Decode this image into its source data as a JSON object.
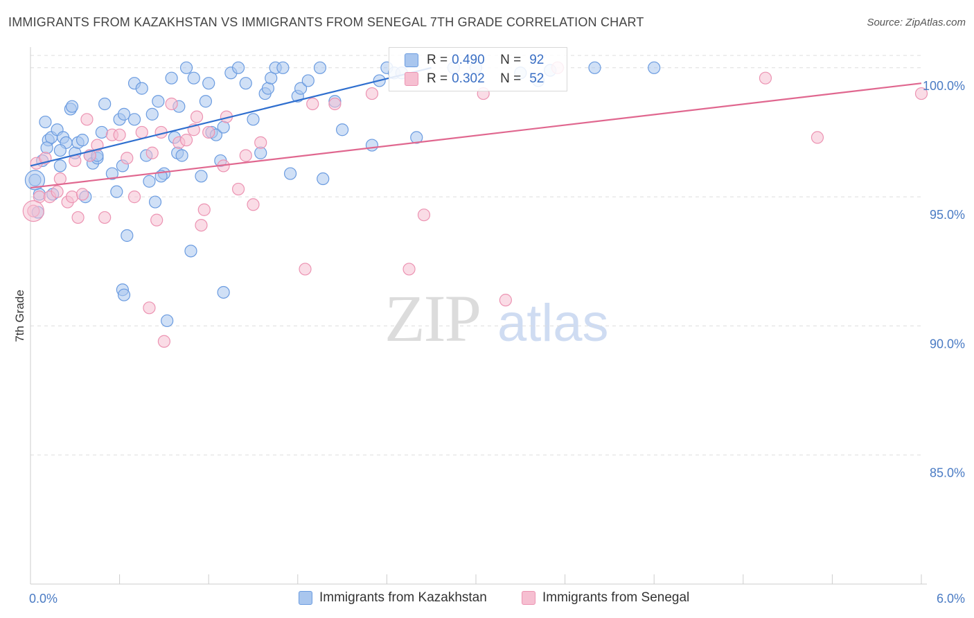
{
  "title": "IMMIGRANTS FROM KAZAKHSTAN VS IMMIGRANTS FROM SENEGAL 7TH GRADE CORRELATION CHART",
  "source": "Source: ZipAtlas.com",
  "watermark": {
    "zip": "ZIP",
    "atlas": "atlas"
  },
  "legend": {
    "rows": [
      {
        "r_label": "R =",
        "r_value": "0.490",
        "n_label": "N =",
        "n_value": "92"
      },
      {
        "r_label": "R =",
        "r_value": "0.302",
        "n_label": "N =",
        "n_value": "52"
      }
    ]
  },
  "bottom_legend": {
    "kazakhstan": "Immigrants from Kazakhstan",
    "senegal": "Immigrants from Senegal"
  },
  "colors": {
    "blue_fill": "#a9c6ee",
    "blue_stroke": "#6a9be0",
    "blue_line": "#2f6fcf",
    "pink_fill": "#f6bfd1",
    "pink_stroke": "#ec93b2",
    "pink_line": "#e0678f",
    "tick": "#4a7bc4",
    "grid": "#dddddd"
  },
  "chart_data": {
    "type": "scatter",
    "xlabel": "",
    "ylabel": "7th Grade",
    "xlim": [
      0.0,
      6.0
    ],
    "ylim": [
      80.0,
      100.8
    ],
    "x_tick_labels": [
      "0.0%",
      "6.0%"
    ],
    "y_ticks": [
      85.0,
      90.0,
      95.0,
      100.0
    ],
    "y_tick_labels": [
      "85.0%",
      "90.0%",
      "95.0%",
      "100.0%"
    ],
    "series": [
      {
        "name": "Immigrants from Kazakhstan",
        "R": 0.49,
        "N": 92,
        "trend": {
          "x0": 0.0,
          "y0": 96.2,
          "x1": 2.7,
          "y1": 100.0
        },
        "points": [
          [
            0.03,
            95.65
          ],
          [
            0.05,
            94.4
          ],
          [
            0.06,
            95.1
          ],
          [
            0.08,
            96.4
          ],
          [
            0.1,
            97.9
          ],
          [
            0.12,
            97.2
          ],
          [
            0.14,
            97.3
          ],
          [
            0.15,
            95.1
          ],
          [
            0.18,
            97.6
          ],
          [
            0.2,
            96.2
          ],
          [
            0.22,
            97.3
          ],
          [
            0.24,
            97.1
          ],
          [
            0.27,
            98.4
          ],
          [
            0.28,
            98.5
          ],
          [
            0.3,
            96.7
          ],
          [
            0.32,
            97.1
          ],
          [
            0.35,
            97.2
          ],
          [
            0.37,
            95.0
          ],
          [
            0.4,
            96.6
          ],
          [
            0.42,
            96.3
          ],
          [
            0.45,
            96.5
          ],
          [
            0.48,
            97.5
          ],
          [
            0.5,
            98.6
          ],
          [
            0.55,
            95.9
          ],
          [
            0.58,
            95.2
          ],
          [
            0.6,
            98.0
          ],
          [
            0.62,
            96.2
          ],
          [
            0.63,
            98.2
          ],
          [
            0.65,
            93.5
          ],
          [
            0.7,
            99.4
          ],
          [
            0.75,
            99.2
          ],
          [
            0.78,
            96.6
          ],
          [
            0.8,
            95.6
          ],
          [
            0.82,
            98.2
          ],
          [
            0.84,
            94.8
          ],
          [
            0.86,
            98.7
          ],
          [
            0.9,
            95.9
          ],
          [
            0.95,
            99.6
          ],
          [
            0.97,
            97.3
          ],
          [
            0.99,
            96.7
          ],
          [
            1.0,
            98.5
          ],
          [
            1.02,
            96.6
          ],
          [
            1.05,
            100.0
          ],
          [
            1.1,
            99.6
          ],
          [
            1.15,
            95.8
          ],
          [
            1.18,
            98.7
          ],
          [
            1.2,
            99.4
          ],
          [
            1.22,
            97.5
          ],
          [
            1.25,
            97.4
          ],
          [
            1.28,
            96.4
          ],
          [
            1.3,
            97.7
          ],
          [
            1.35,
            99.8
          ],
          [
            1.4,
            100.0
          ],
          [
            1.45,
            99.4
          ],
          [
            1.5,
            98.0
          ],
          [
            1.55,
            96.7
          ],
          [
            1.58,
            99.0
          ],
          [
            1.6,
            99.2
          ],
          [
            1.62,
            99.6
          ],
          [
            1.65,
            100.0
          ],
          [
            1.7,
            100.0
          ],
          [
            1.75,
            95.9
          ],
          [
            1.8,
            98.9
          ],
          [
            1.82,
            99.2
          ],
          [
            1.87,
            99.5
          ],
          [
            1.95,
            100.0
          ],
          [
            1.97,
            95.7
          ],
          [
            2.05,
            98.7
          ],
          [
            2.1,
            97.6
          ],
          [
            2.3,
            97.0
          ],
          [
            2.35,
            99.5
          ],
          [
            2.4,
            100.0
          ],
          [
            2.45,
            99.8
          ],
          [
            2.5,
            99.8
          ],
          [
            2.6,
            97.3
          ],
          [
            2.85,
            100.0
          ],
          [
            3.0,
            100.0
          ],
          [
            3.3,
            99.8
          ],
          [
            3.42,
            99.5
          ],
          [
            3.5,
            99.9
          ],
          [
            3.8,
            100.0
          ],
          [
            4.2,
            100.0
          ],
          [
            0.88,
            95.8
          ],
          [
            0.45,
            96.6
          ],
          [
            0.2,
            96.8
          ],
          [
            0.62,
            91.4
          ],
          [
            0.63,
            91.2
          ],
          [
            1.3,
            91.3
          ],
          [
            0.92,
            90.2
          ],
          [
            1.08,
            92.9
          ],
          [
            0.11,
            96.9
          ],
          [
            0.7,
            98.0
          ]
        ]
      },
      {
        "name": "Immigrants from Senegal",
        "R": 0.302,
        "N": 52,
        "trend": {
          "x0": 0.0,
          "y0": 95.35,
          "x1": 6.0,
          "y1": 99.4
        },
        "points": [
          [
            0.02,
            94.45
          ],
          [
            0.04,
            96.3
          ],
          [
            0.06,
            95.0
          ],
          [
            0.1,
            96.5
          ],
          [
            0.13,
            95.0
          ],
          [
            0.18,
            95.2
          ],
          [
            0.2,
            95.7
          ],
          [
            0.25,
            94.8
          ],
          [
            0.28,
            95.0
          ],
          [
            0.32,
            94.2
          ],
          [
            0.35,
            95.1
          ],
          [
            0.38,
            98.0
          ],
          [
            0.4,
            96.6
          ],
          [
            0.45,
            97.0
          ],
          [
            0.5,
            94.2
          ],
          [
            0.55,
            97.4
          ],
          [
            0.6,
            97.4
          ],
          [
            0.65,
            96.5
          ],
          [
            0.7,
            95.0
          ],
          [
            0.75,
            97.5
          ],
          [
            0.8,
            90.7
          ],
          [
            0.82,
            96.7
          ],
          [
            0.85,
            94.1
          ],
          [
            0.88,
            97.5
          ],
          [
            0.9,
            89.4
          ],
          [
            0.95,
            98.6
          ],
          [
            1.0,
            97.1
          ],
          [
            1.05,
            97.2
          ],
          [
            1.1,
            97.6
          ],
          [
            1.12,
            98.1
          ],
          [
            1.15,
            93.9
          ],
          [
            1.17,
            94.5
          ],
          [
            1.2,
            97.5
          ],
          [
            1.3,
            96.2
          ],
          [
            1.32,
            98.1
          ],
          [
            1.4,
            95.3
          ],
          [
            1.45,
            96.6
          ],
          [
            1.5,
            94.7
          ],
          [
            1.55,
            97.1
          ],
          [
            1.85,
            92.2
          ],
          [
            1.9,
            98.6
          ],
          [
            2.05,
            98.6
          ],
          [
            2.3,
            99.0
          ],
          [
            2.55,
            92.2
          ],
          [
            2.65,
            94.3
          ],
          [
            3.05,
            99.0
          ],
          [
            3.2,
            91.0
          ],
          [
            3.55,
            100.0
          ],
          [
            4.95,
            99.6
          ],
          [
            5.3,
            97.3
          ],
          [
            6.0,
            99.0
          ],
          [
            0.3,
            96.4
          ]
        ]
      }
    ]
  }
}
